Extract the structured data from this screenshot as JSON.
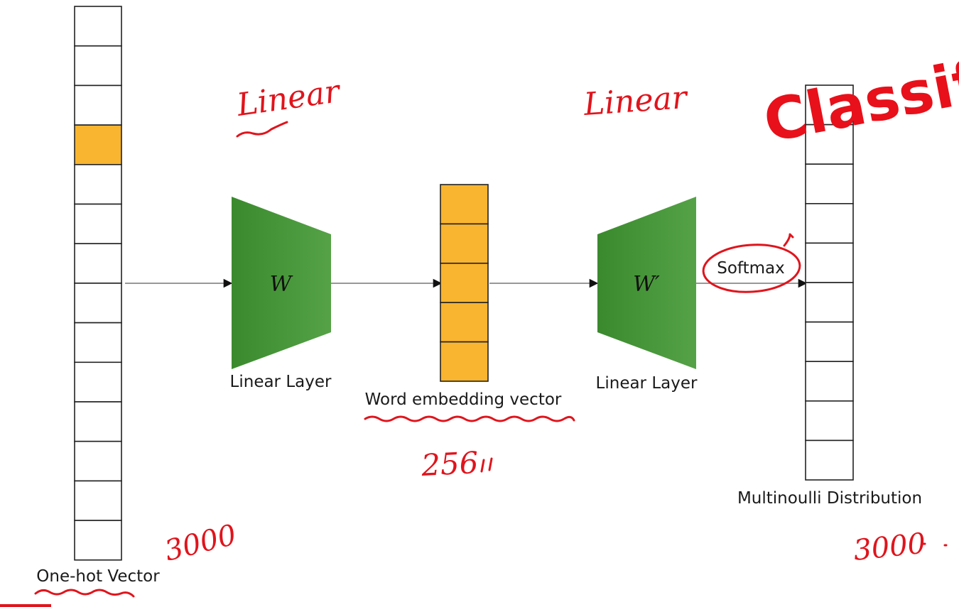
{
  "diagram": {
    "input_vector": {
      "label": "One-hot Vector",
      "cell_count": 14,
      "highlighted_index": 3,
      "annotation": "3000"
    },
    "encoder_layer": {
      "symbol": "W",
      "label": "Linear Layer",
      "annotation": "Linear"
    },
    "embedding": {
      "label": "Word embedding vector",
      "cell_count": 5,
      "annotation": "256"
    },
    "decoder_layer": {
      "symbol": "W′",
      "label": "Linear Layer",
      "annotation": "Linear"
    },
    "activation": {
      "label": "Softmax"
    },
    "output_vector": {
      "label": "Multinoulli Distribution",
      "cell_count": 10,
      "annotation": "3000"
    },
    "stamp": {
      "text": "Classific"
    }
  },
  "colors": {
    "highlight": "#f9b52f",
    "layer_green": "#3c8f2f",
    "ink_red": "#e0141c",
    "stamp_red": "#e8101a",
    "cell_border": "#222222"
  }
}
